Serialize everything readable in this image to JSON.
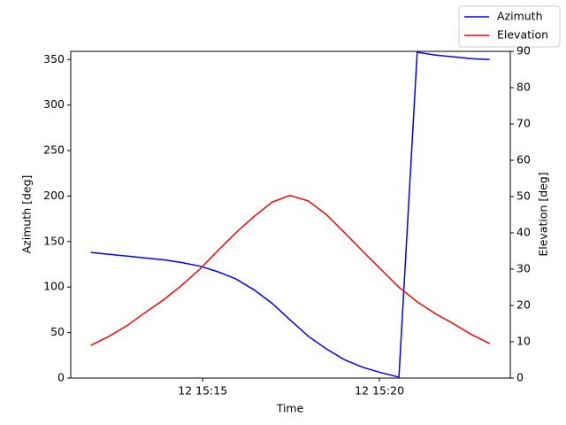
{
  "chart_data": {
    "type": "line",
    "x": [
      "12 15:11:50",
      "12 15:12:21",
      "12 15:12:52",
      "12 15:13:22",
      "12 15:13:53",
      "12 15:14:24",
      "12 15:14:55",
      "12 15:15:25",
      "12 15:15:56",
      "12 15:16:27",
      "12 15:16:58",
      "12 15:17:28",
      "12 15:17:59",
      "12 15:18:30",
      "12 15:19:01",
      "12 15:19:31",
      "12 15:20:02",
      "12 15:20:33",
      "12 15:21:04",
      "12 15:21:34",
      "12 15:22:05",
      "12 15:22:36",
      "12 15:23:07"
    ],
    "series": [
      {
        "name": "Azimuth",
        "color": "#0000ff",
        "axis": "y",
        "values": [
          138,
          136,
          134,
          132,
          130,
          127,
          123,
          117,
          109,
          97,
          82,
          64,
          46,
          32,
          20,
          12,
          6,
          1,
          358,
          355,
          353,
          351,
          350
        ]
      },
      {
        "name": "Elevation",
        "color": "#ff0000",
        "axis": "y2",
        "values": [
          9,
          11.5,
          14.5,
          18,
          21.5,
          25.5,
          30,
          35,
          40,
          44.5,
          48.5,
          50.3,
          48.8,
          45,
          40,
          35,
          30,
          25,
          21,
          17.8,
          15,
          12,
          9.5
        ]
      }
    ],
    "xlabel": "Time",
    "ylabel": "Azimuth [deg]",
    "y2label": "Elevation [deg]",
    "xlim": [
      "12 15:11:16",
      "12 15:23:42"
    ],
    "xticks": [
      "12 15:15",
      "12 15:20"
    ],
    "ylim": [
      0,
      359
    ],
    "yticks": [
      0,
      50,
      100,
      150,
      200,
      250,
      300,
      350
    ],
    "y2lim": [
      0,
      90
    ],
    "y2ticks": [
      0,
      10,
      20,
      30,
      40,
      50,
      60,
      70,
      80,
      90
    ],
    "legend": "upper right"
  }
}
